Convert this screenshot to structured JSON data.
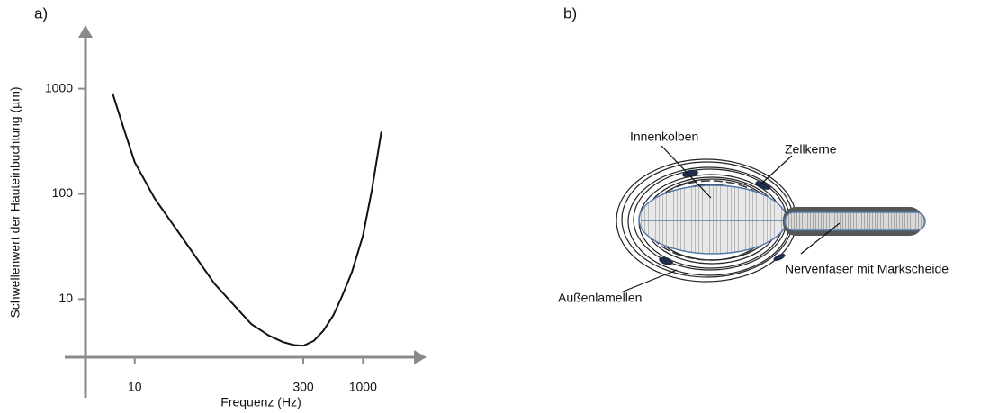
{
  "chart_data": {
    "type": "line",
    "panel_label": "a)",
    "x_label": "Frequenz (Hz)",
    "y_label": "Schwellenwert der Hauteinbuchtung (µm)",
    "x_log": true,
    "y_log": true,
    "xlim": [
      3.7,
      2800
    ],
    "ylim": [
      2.8,
      3500
    ],
    "xticks": [
      10,
      300,
      1000
    ],
    "yticks": [
      10,
      100,
      1000
    ],
    "grid": false,
    "series": [
      {
        "color": "#111111",
        "x": [
          6.4,
          8,
          10,
          15,
          25,
          50,
          80,
          105,
          150,
          200,
          250,
          300,
          370,
          450,
          550,
          650,
          800,
          1000,
          1200,
          1450
        ],
        "values": [
          900,
          420,
          200,
          90,
          41,
          14,
          8,
          5.8,
          4.5,
          3.9,
          3.65,
          3.6,
          4,
          5,
          7,
          10.4,
          18,
          40,
          110,
          390
        ]
      }
    ]
  },
  "diagram": {
    "panel_label": "b)",
    "labels": [
      "Innenkolben",
      "Zellkerne",
      "Nervenfaser mit Markscheide",
      "Außenlamellen"
    ]
  }
}
